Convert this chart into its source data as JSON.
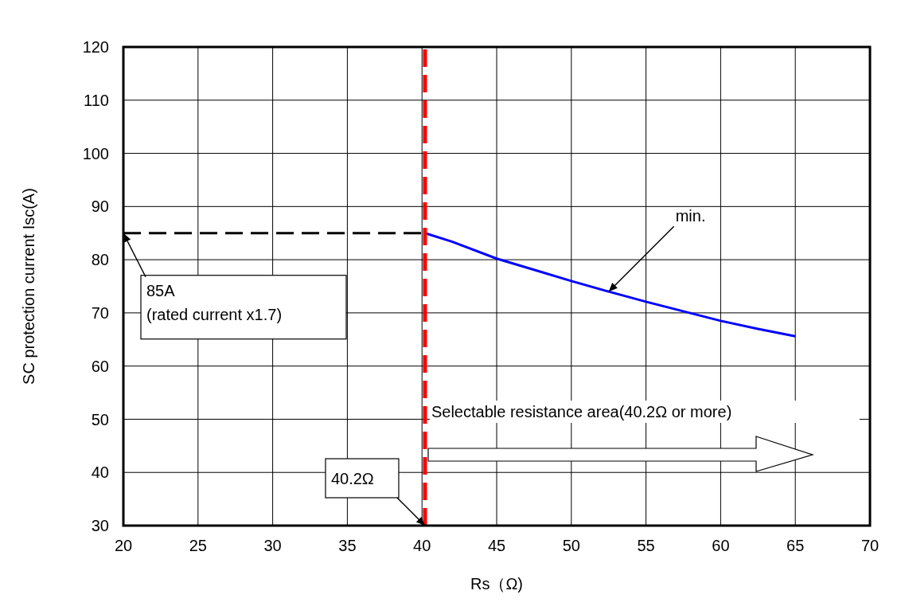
{
  "chart_data": {
    "type": "line",
    "xlabel": "Rs（Ω)",
    "ylabel": "SC protection current Isc(A)",
    "xlim": [
      20,
      70
    ],
    "xticks": [
      20,
      25,
      30,
      35,
      40,
      45,
      50,
      55,
      60,
      65,
      70
    ],
    "ylim": [
      30,
      120
    ],
    "yticks": [
      30,
      40,
      50,
      60,
      70,
      80,
      90,
      100,
      110,
      120
    ],
    "grid": true,
    "marker": "none",
    "series": [
      {
        "color": "#0000ff",
        "line_style": "solid",
        "x": [
          40.2,
          42,
          45,
          47.5,
          50,
          52.5,
          55,
          57.5,
          60,
          62.5,
          65
        ],
        "values": [
          85,
          83.4,
          80.2,
          78.1,
          76,
          74,
          72.1,
          70.3,
          68.5,
          67,
          65.6
        ]
      },
      {
        "color": "#000000",
        "line_style": "dashed",
        "x": [
          20,
          40.2
        ],
        "values": [
          85,
          85
        ]
      }
    ],
    "ref_lines": [
      {
        "axis": "x",
        "value": 40.2,
        "color": "#ff0000",
        "line_style": "dashed"
      }
    ],
    "annotations": [
      {
        "text": "85A\n(rated current x1.7)",
        "x": 20,
        "y": 85
      },
      "40.2Ω",
      {
        "text": "min.",
        "x": 52.5,
        "y": 74
      },
      "Selectable resistance area(40.2Ω or more)"
    ]
  }
}
